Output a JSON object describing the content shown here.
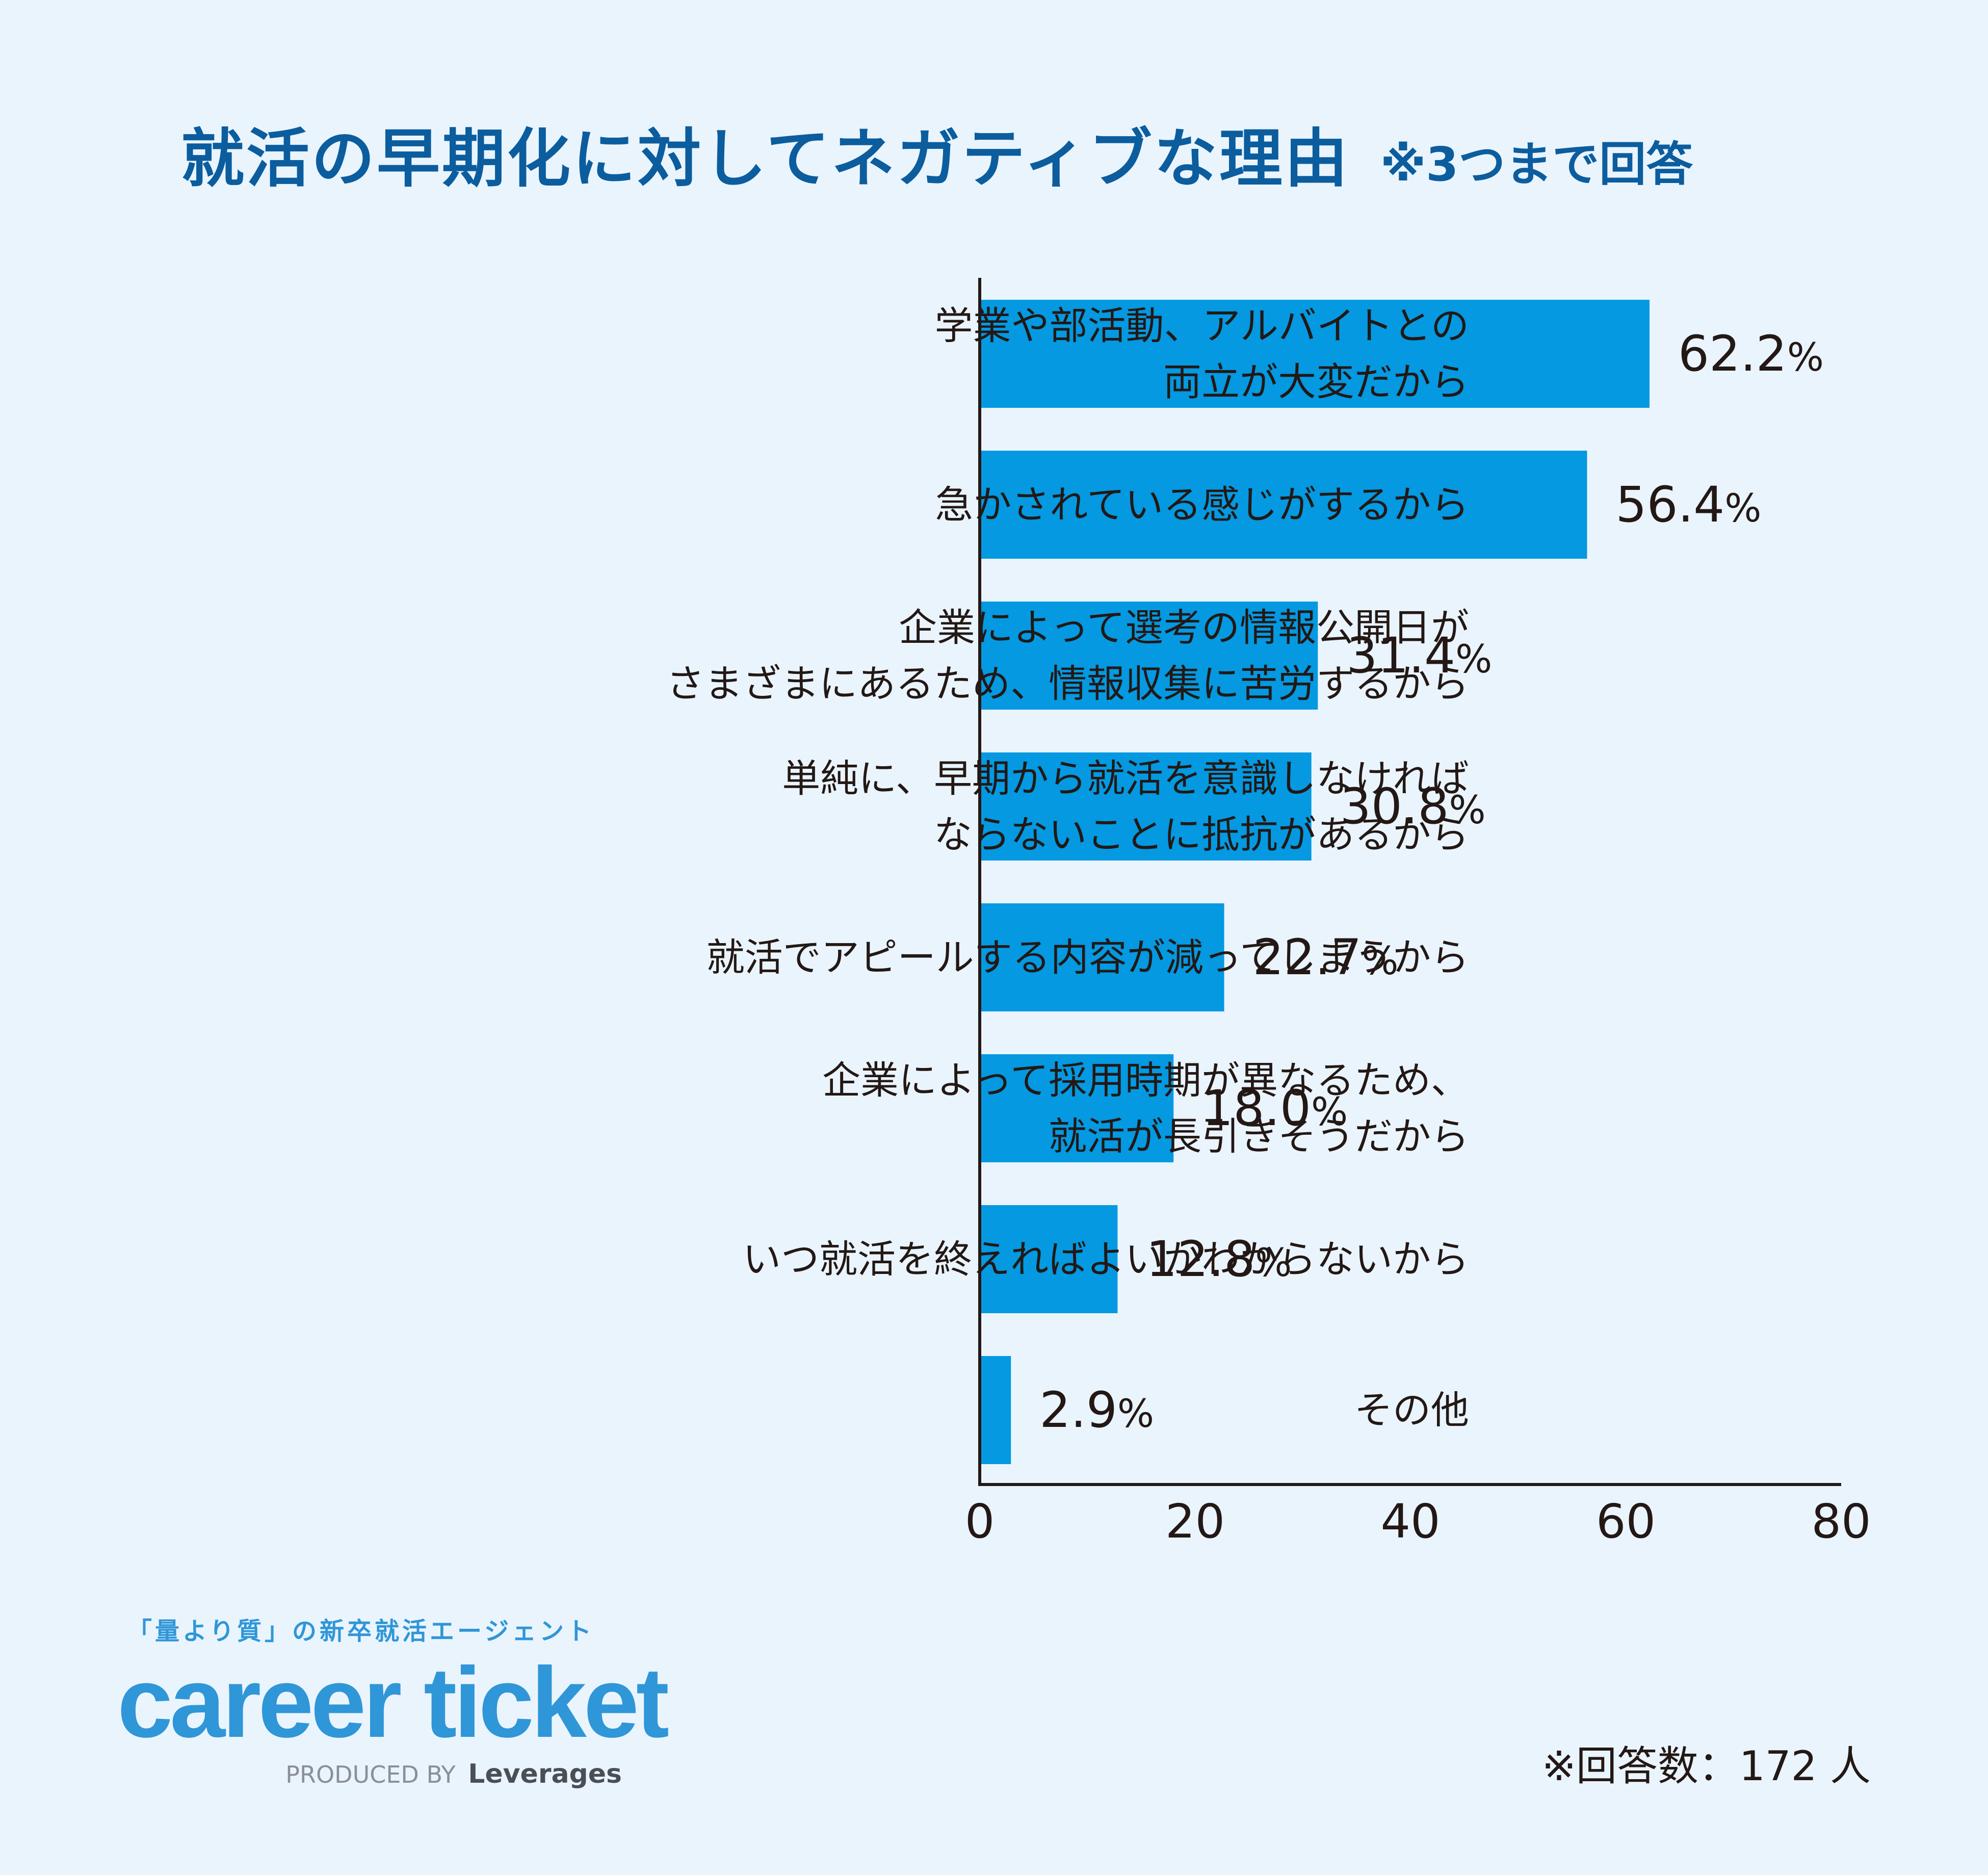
{
  "title": "就活の早期化に対してネガティブな理由",
  "subtitle": "※3つまで回答",
  "chart_data": {
    "type": "bar",
    "orientation": "horizontal",
    "categories": [
      [
        "学業や部活動、アルバイトとの",
        "両立が大変だから"
      ],
      [
        "急かされている感じがするから"
      ],
      [
        "企業によって選考の情報公開日が",
        "さまざまにあるため、情報収集に苦労するから"
      ],
      [
        "単純に、早期から就活を意識しなければ",
        "ならないことに抵抗があるから"
      ],
      [
        "就活でアピールする内容が減ってしまうから"
      ],
      [
        "企業によって採用時期が異なるため、",
        "就活が長引きそうだから"
      ],
      [
        "いつ就活を終えればよいかわからないから"
      ],
      [
        "その他"
      ]
    ],
    "values": [
      62.2,
      56.4,
      31.4,
      30.8,
      22.7,
      18.0,
      12.8,
      2.9
    ],
    "value_labels": [
      "62.2",
      "56.4",
      "31.4",
      "30.8",
      "22.7",
      "18.0",
      "12.8",
      "2.9"
    ],
    "unit": "%",
    "xlim": [
      0,
      80
    ],
    "xticks": [
      "0",
      "20",
      "40",
      "60",
      "80"
    ],
    "bar_color": "#0499e1",
    "axis_color": "#231815"
  },
  "brand": {
    "tagline": "「量より質」の新卒就活エージェント",
    "name": "career ticket",
    "produced_by": "PRODUCED BY",
    "company": "Leverages",
    "color": "#2f96d8"
  },
  "note": "※回答数：172 人"
}
